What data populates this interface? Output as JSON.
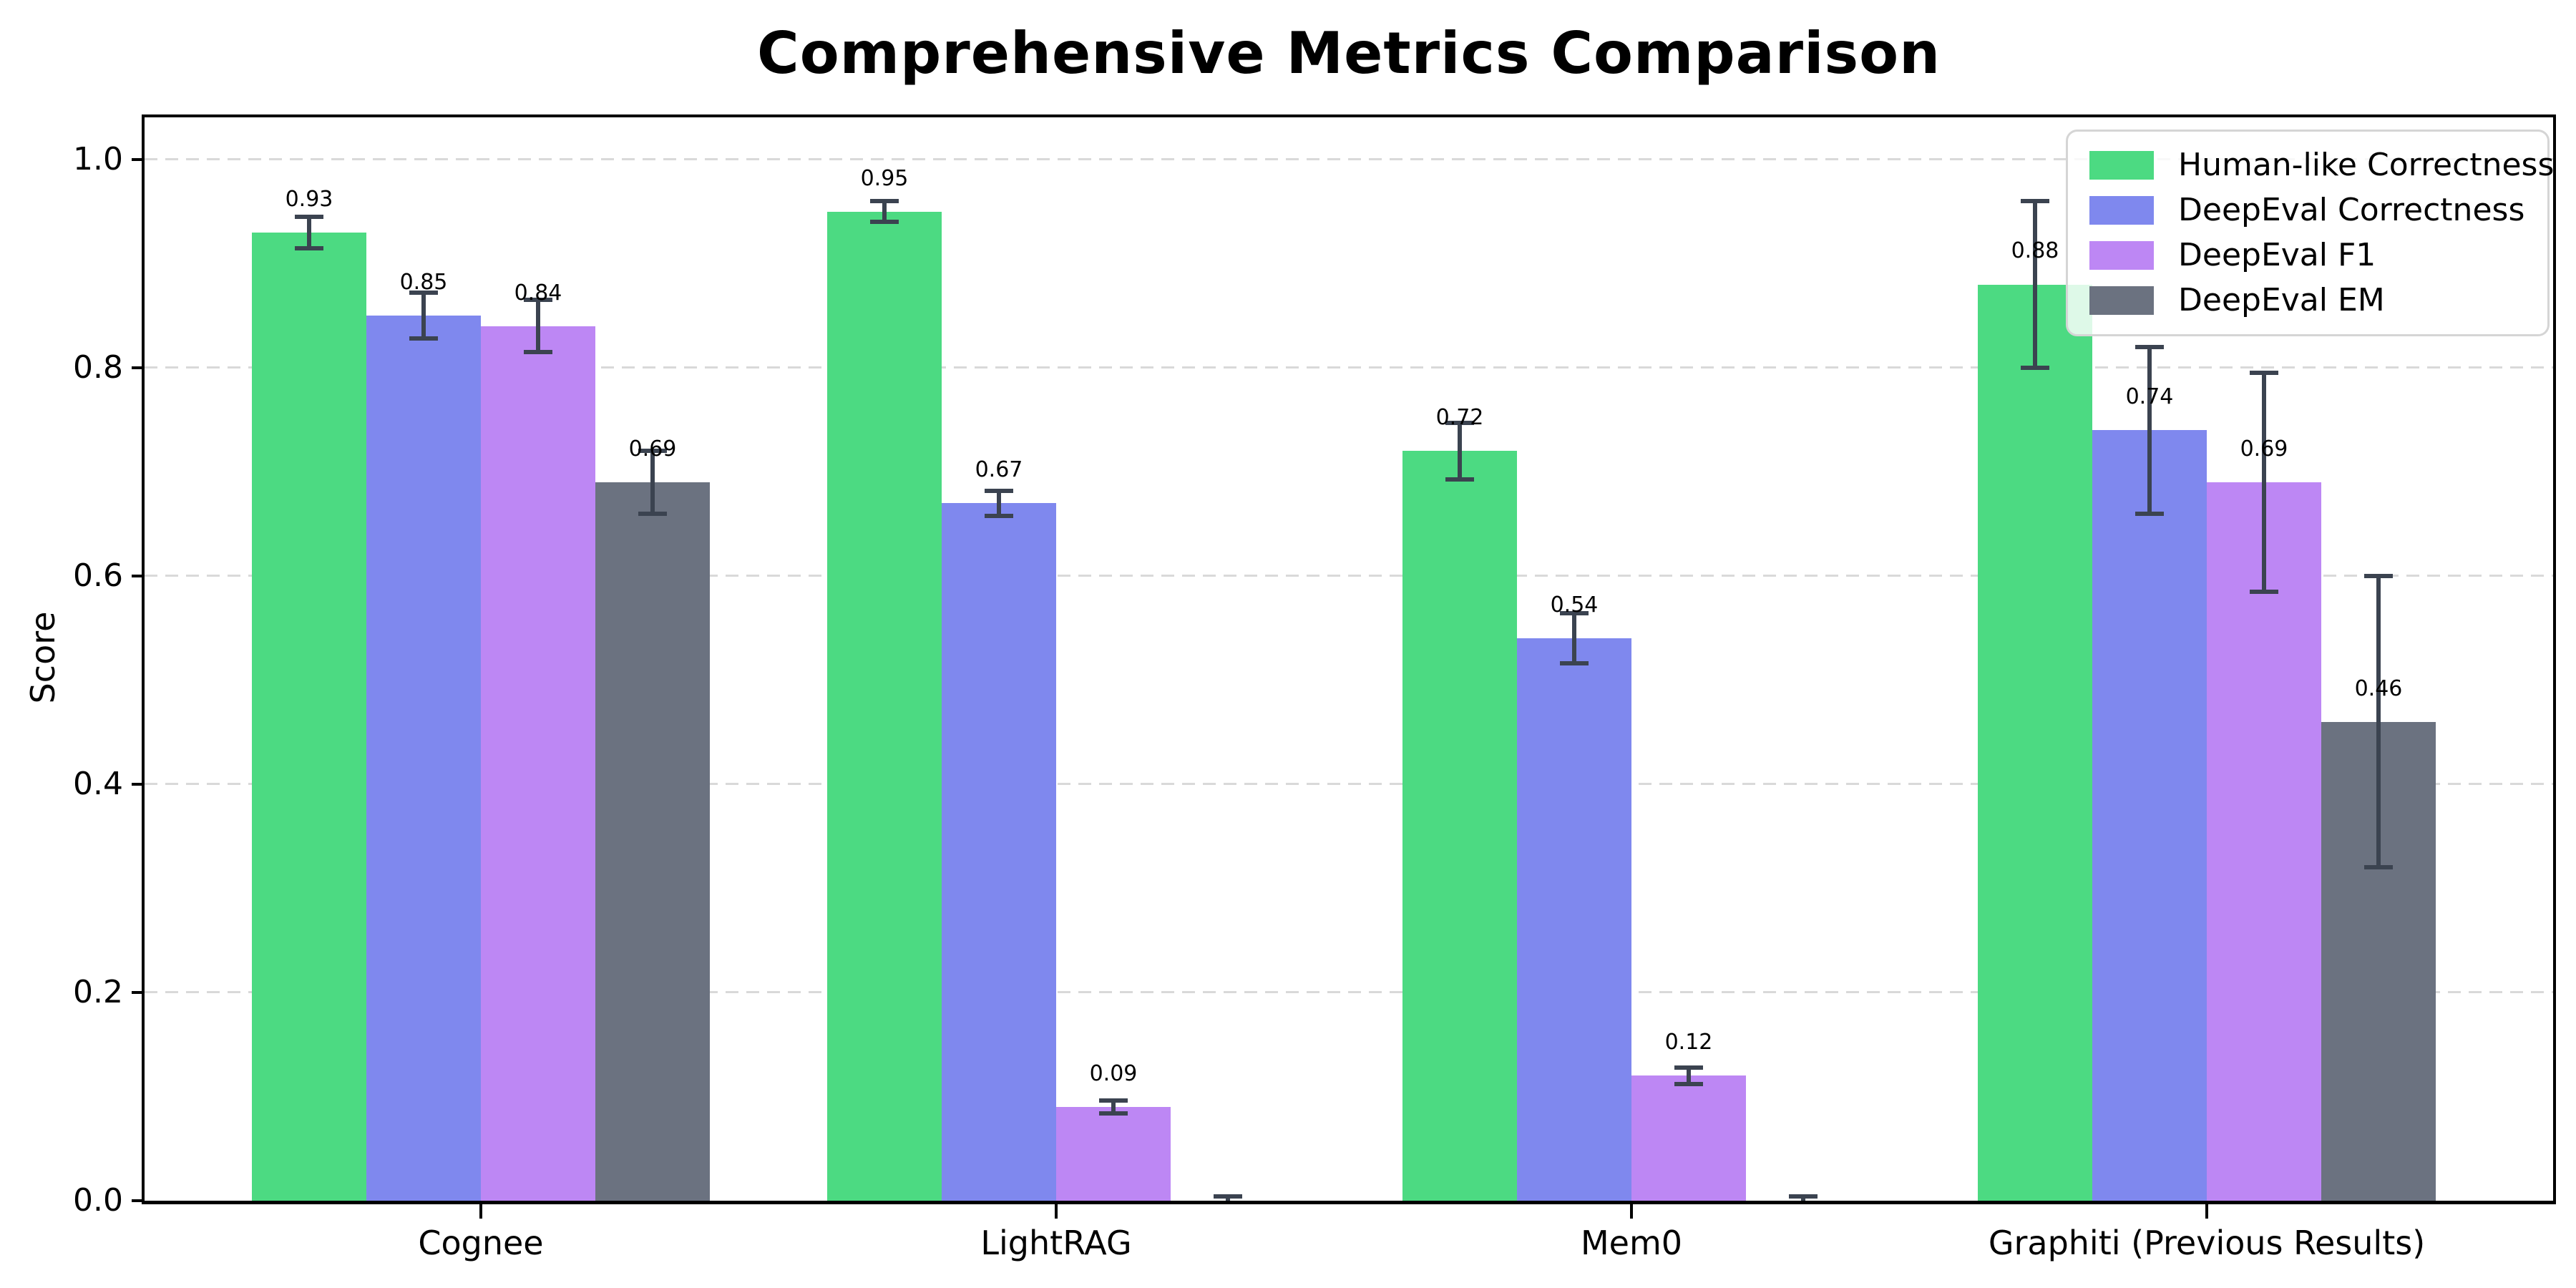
{
  "chart_data": {
    "type": "bar",
    "title": "Comprehensive Metrics Comparison",
    "ylabel": "Score",
    "xlabel": "",
    "categories": [
      "Cognee",
      "LightRAG",
      "Mem0",
      "Graphiti (Previous Results)"
    ],
    "yticks": [
      "0.0",
      "0.2",
      "0.4",
      "0.6",
      "0.8",
      "1.0"
    ],
    "ytick_values": [
      0.0,
      0.2,
      0.4,
      0.6,
      0.8,
      1.0
    ],
    "ylim": [
      0,
      1.047
    ],
    "grid": {
      "axis": "y",
      "style": "dashed",
      "color": "#d9d9d9"
    },
    "legend": {
      "position": "upper right",
      "background": "#ffffff",
      "border_color": "#d5d5d5"
    },
    "error_bar_color": "#3b4350",
    "series": [
      {
        "name": "Human-like Correctness",
        "color": "#4cda82",
        "values": [
          0.93,
          0.95,
          0.72,
          0.88
        ],
        "errors": [
          0.015,
          0.01,
          0.027,
          0.08
        ],
        "labels": [
          "0.93",
          "0.95",
          "0.72",
          "0.88"
        ]
      },
      {
        "name": "DeepEval Correctness",
        "color": "#7f88ee",
        "values": [
          0.85,
          0.67,
          0.54,
          0.74
        ],
        "errors": [
          0.022,
          0.012,
          0.024,
          0.08
        ],
        "labels": [
          "0.85",
          "0.67",
          "0.54",
          "0.74"
        ]
      },
      {
        "name": "DeepEval F1",
        "color": "#bd87f4",
        "values": [
          0.84,
          0.09,
          0.12,
          0.69
        ],
        "errors": [
          0.025,
          0.006,
          0.008,
          0.105
        ],
        "labels": [
          "0.84",
          "0.09",
          "0.12",
          "0.69"
        ]
      },
      {
        "name": "DeepEval EM",
        "color": "#6b7280",
        "values": [
          0.69,
          0.0,
          0.0,
          0.46
        ],
        "errors": [
          0.03,
          0.004,
          0.004,
          0.14
        ],
        "labels": [
          "0.69",
          null,
          null,
          "0.46"
        ]
      }
    ]
  }
}
